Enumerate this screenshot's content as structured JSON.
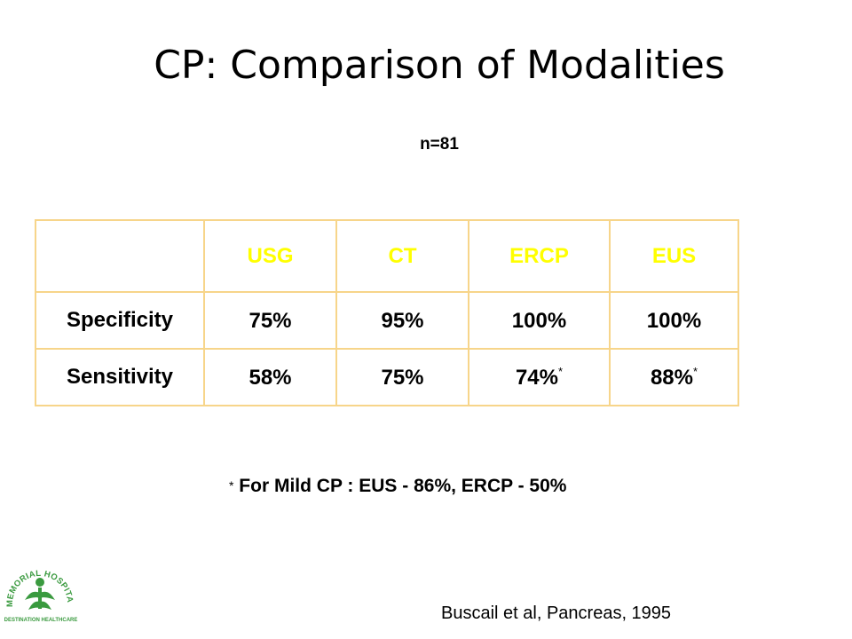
{
  "slide": {
    "title": "CP: Comparison of Modalities",
    "subtitle": "n=81",
    "footnote_star": "*",
    "footnote_text": "For Mild CP : EUS - 86%, ERCP - 50%",
    "citation": "Buscail et al, Pancreas, 1995"
  },
  "table": {
    "corner": "",
    "headers": [
      "USG",
      "CT",
      "ERCP",
      "EUS"
    ],
    "rows": [
      {
        "label": "Specificity",
        "values": [
          "75%",
          "95%",
          "100%",
          "100%"
        ],
        "marks": [
          "",
          "",
          "",
          ""
        ]
      },
      {
        "label": "Sensitivity",
        "values": [
          "58%",
          "75%",
          "74%",
          "88%"
        ],
        "marks": [
          "",
          "",
          "*",
          "*"
        ]
      }
    ]
  },
  "logo": {
    "text_arc": "PVS MEMORIAL HOSPITAL LTD",
    "tagline": "DESTINATION HEALTHCARE",
    "color": "#3a9a3f"
  },
  "colors": {
    "header_text": "#ffff00",
    "row_label_text": "#00ffff",
    "table_border": "#f7d58a"
  }
}
